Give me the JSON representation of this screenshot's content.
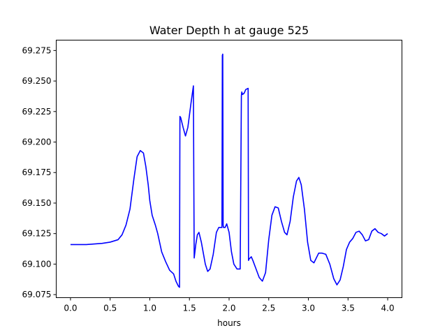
{
  "chart_data": {
    "type": "line",
    "title": "Water Depth h at gauge 525",
    "xlabel": "hours",
    "ylabel": "",
    "xlim": [
      -0.18,
      4.18
    ],
    "ylim": [
      69.0725,
      69.2835
    ],
    "xticks": [
      0.0,
      0.5,
      1.0,
      1.5,
      2.0,
      2.5,
      3.0,
      3.5,
      4.0
    ],
    "xtick_labels": [
      "0.0",
      "0.5",
      "1.0",
      "1.5",
      "2.0",
      "2.5",
      "3.0",
      "3.5",
      "4.0"
    ],
    "yticks": [
      69.075,
      69.1,
      69.125,
      69.15,
      69.175,
      69.2,
      69.225,
      69.25,
      69.275
    ],
    "ytick_labels": [
      "69.075",
      "69.100",
      "69.125",
      "69.150",
      "69.175",
      "69.200",
      "69.225",
      "69.250",
      "69.275"
    ],
    "grid": false,
    "series": [
      {
        "color": "#0000ff",
        "x": [
          0.0,
          0.2,
          0.4,
          0.5,
          0.6,
          0.65,
          0.7,
          0.75,
          0.8,
          0.84,
          0.88,
          0.92,
          0.95,
          0.98,
          1.0,
          1.03,
          1.07,
          1.1,
          1.15,
          1.2,
          1.25,
          1.3,
          1.33,
          1.36,
          1.375,
          1.38,
          1.39,
          1.42,
          1.45,
          1.48,
          1.52,
          1.55,
          1.555,
          1.56,
          1.58,
          1.6,
          1.62,
          1.65,
          1.7,
          1.73,
          1.76,
          1.8,
          1.84,
          1.87,
          1.9,
          1.91,
          1.915,
          1.92,
          1.925,
          1.93,
          1.95,
          1.97,
          2.0,
          2.03,
          2.06,
          2.1,
          2.14,
          2.155,
          2.16,
          2.17,
          2.19,
          2.21,
          2.24,
          2.245,
          2.25,
          2.28,
          2.3,
          2.34,
          2.38,
          2.42,
          2.46,
          2.5,
          2.54,
          2.58,
          2.62,
          2.66,
          2.7,
          2.73,
          2.77,
          2.81,
          2.85,
          2.88,
          2.91,
          2.95,
          2.99,
          3.03,
          3.07,
          3.1,
          3.13,
          3.17,
          3.22,
          3.27,
          3.32,
          3.36,
          3.4,
          3.44,
          3.48,
          3.52,
          3.56,
          3.6,
          3.64,
          3.68,
          3.72,
          3.76,
          3.8,
          3.84,
          3.88,
          3.92,
          3.96,
          4.0
        ],
        "y": [
          69.116,
          69.116,
          69.117,
          69.118,
          69.12,
          69.124,
          69.132,
          69.145,
          69.17,
          69.188,
          69.193,
          69.191,
          69.18,
          69.165,
          69.152,
          69.14,
          69.132,
          69.125,
          69.11,
          69.102,
          69.095,
          69.092,
          69.086,
          69.082,
          69.081,
          69.221,
          69.22,
          69.212,
          69.205,
          69.212,
          69.232,
          69.246,
          69.17,
          69.105,
          69.116,
          69.124,
          69.126,
          69.118,
          69.1,
          69.094,
          69.096,
          69.108,
          69.126,
          69.13,
          69.13,
          69.13,
          69.271,
          69.272,
          69.132,
          69.13,
          69.13,
          69.133,
          69.126,
          69.11,
          69.1,
          69.096,
          69.096,
          69.238,
          69.241,
          69.239,
          69.24,
          69.243,
          69.244,
          69.103,
          69.104,
          69.106,
          69.103,
          69.096,
          69.089,
          69.086,
          69.093,
          69.12,
          69.14,
          69.147,
          69.146,
          69.135,
          69.126,
          69.124,
          69.135,
          69.155,
          69.168,
          69.171,
          69.165,
          69.145,
          69.118,
          69.103,
          69.101,
          69.105,
          69.109,
          69.109,
          69.108,
          69.1,
          69.088,
          69.083,
          69.087,
          69.098,
          69.112,
          69.118,
          69.121,
          69.126,
          69.127,
          69.124,
          69.119,
          69.12,
          69.127,
          69.129,
          69.126,
          69.125,
          69.123,
          69.125
        ]
      }
    ]
  }
}
